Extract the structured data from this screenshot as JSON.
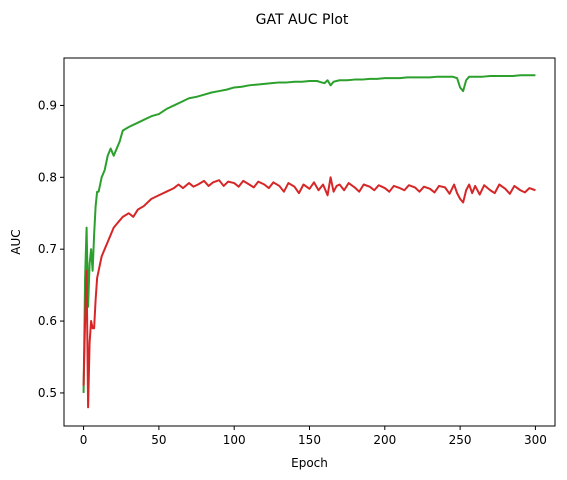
{
  "chart_data": {
    "type": "line",
    "title": "GAT AUC Plot",
    "xlabel": "Epoch",
    "ylabel": "AUC",
    "xlim": [
      -13,
      313
    ],
    "ylim": [
      0.454,
      0.966
    ],
    "xticks": [
      0,
      50,
      100,
      150,
      200,
      250,
      300
    ],
    "yticks": [
      0.5,
      0.6,
      0.7,
      0.8,
      0.9
    ],
    "grid": false,
    "legend": "none",
    "series": [
      {
        "color": "#2ca02c",
        "points": [
          [
            0,
            0.5
          ],
          [
            1,
            0.66
          ],
          [
            2,
            0.73
          ],
          [
            3,
            0.62
          ],
          [
            4,
            0.68
          ],
          [
            5,
            0.7
          ],
          [
            6,
            0.67
          ],
          [
            7,
            0.72
          ],
          [
            8,
            0.76
          ],
          [
            9,
            0.78
          ],
          [
            10,
            0.78
          ],
          [
            12,
            0.8
          ],
          [
            14,
            0.81
          ],
          [
            16,
            0.83
          ],
          [
            18,
            0.84
          ],
          [
            20,
            0.83
          ],
          [
            22,
            0.84
          ],
          [
            24,
            0.85
          ],
          [
            26,
            0.865
          ],
          [
            30,
            0.87
          ],
          [
            35,
            0.875
          ],
          [
            40,
            0.88
          ],
          [
            45,
            0.885
          ],
          [
            50,
            0.888
          ],
          [
            55,
            0.895
          ],
          [
            60,
            0.9
          ],
          [
            65,
            0.905
          ],
          [
            70,
            0.91
          ],
          [
            75,
            0.912
          ],
          [
            80,
            0.915
          ],
          [
            85,
            0.918
          ],
          [
            90,
            0.92
          ],
          [
            95,
            0.922
          ],
          [
            100,
            0.925
          ],
          [
            105,
            0.926
          ],
          [
            110,
            0.928
          ],
          [
            115,
            0.929
          ],
          [
            120,
            0.93
          ],
          [
            125,
            0.931
          ],
          [
            130,
            0.932
          ],
          [
            135,
            0.932
          ],
          [
            140,
            0.933
          ],
          [
            145,
            0.933
          ],
          [
            150,
            0.934
          ],
          [
            155,
            0.934
          ],
          [
            158,
            0.932
          ],
          [
            160,
            0.931
          ],
          [
            162,
            0.935
          ],
          [
            164,
            0.928
          ],
          [
            166,
            0.933
          ],
          [
            170,
            0.935
          ],
          [
            175,
            0.935
          ],
          [
            180,
            0.936
          ],
          [
            185,
            0.936
          ],
          [
            190,
            0.937
          ],
          [
            195,
            0.937
          ],
          [
            200,
            0.938
          ],
          [
            205,
            0.938
          ],
          [
            210,
            0.938
          ],
          [
            215,
            0.939
          ],
          [
            220,
            0.939
          ],
          [
            225,
            0.939
          ],
          [
            230,
            0.939
          ],
          [
            235,
            0.94
          ],
          [
            240,
            0.94
          ],
          [
            245,
            0.94
          ],
          [
            248,
            0.938
          ],
          [
            250,
            0.925
          ],
          [
            252,
            0.92
          ],
          [
            254,
            0.935
          ],
          [
            256,
            0.94
          ],
          [
            260,
            0.94
          ],
          [
            265,
            0.94
          ],
          [
            270,
            0.941
          ],
          [
            275,
            0.941
          ],
          [
            280,
            0.941
          ],
          [
            285,
            0.941
          ],
          [
            290,
            0.942
          ],
          [
            295,
            0.942
          ],
          [
            300,
            0.942
          ]
        ]
      },
      {
        "color": "#d62728",
        "points": [
          [
            0,
            0.51
          ],
          [
            1,
            0.6
          ],
          [
            2,
            0.67
          ],
          [
            3,
            0.48
          ],
          [
            4,
            0.57
          ],
          [
            5,
            0.6
          ],
          [
            6,
            0.59
          ],
          [
            7,
            0.59
          ],
          [
            8,
            0.63
          ],
          [
            9,
            0.66
          ],
          [
            10,
            0.67
          ],
          [
            12,
            0.69
          ],
          [
            14,
            0.7
          ],
          [
            16,
            0.71
          ],
          [
            18,
            0.72
          ],
          [
            20,
            0.73
          ],
          [
            22,
            0.735
          ],
          [
            24,
            0.74
          ],
          [
            26,
            0.745
          ],
          [
            30,
            0.75
          ],
          [
            33,
            0.745
          ],
          [
            36,
            0.755
          ],
          [
            40,
            0.76
          ],
          [
            45,
            0.77
          ],
          [
            50,
            0.775
          ],
          [
            55,
            0.78
          ],
          [
            60,
            0.785
          ],
          [
            63,
            0.79
          ],
          [
            66,
            0.785
          ],
          [
            70,
            0.792
          ],
          [
            73,
            0.787
          ],
          [
            76,
            0.79
          ],
          [
            80,
            0.795
          ],
          [
            83,
            0.788
          ],
          [
            86,
            0.793
          ],
          [
            90,
            0.796
          ],
          [
            93,
            0.788
          ],
          [
            96,
            0.794
          ],
          [
            100,
            0.792
          ],
          [
            103,
            0.787
          ],
          [
            106,
            0.795
          ],
          [
            110,
            0.79
          ],
          [
            113,
            0.786
          ],
          [
            116,
            0.794
          ],
          [
            120,
            0.79
          ],
          [
            123,
            0.785
          ],
          [
            126,
            0.793
          ],
          [
            130,
            0.788
          ],
          [
            133,
            0.78
          ],
          [
            136,
            0.792
          ],
          [
            140,
            0.787
          ],
          [
            143,
            0.778
          ],
          [
            146,
            0.79
          ],
          [
            150,
            0.784
          ],
          [
            153,
            0.793
          ],
          [
            156,
            0.782
          ],
          [
            159,
            0.79
          ],
          [
            162,
            0.775
          ],
          [
            164,
            0.8
          ],
          [
            166,
            0.78
          ],
          [
            168,
            0.788
          ],
          [
            170,
            0.79
          ],
          [
            173,
            0.782
          ],
          [
            176,
            0.792
          ],
          [
            180,
            0.786
          ],
          [
            183,
            0.78
          ],
          [
            186,
            0.79
          ],
          [
            190,
            0.787
          ],
          [
            193,
            0.782
          ],
          [
            196,
            0.789
          ],
          [
            200,
            0.785
          ],
          [
            203,
            0.78
          ],
          [
            206,
            0.788
          ],
          [
            210,
            0.785
          ],
          [
            213,
            0.782
          ],
          [
            216,
            0.789
          ],
          [
            220,
            0.786
          ],
          [
            223,
            0.78
          ],
          [
            226,
            0.787
          ],
          [
            230,
            0.784
          ],
          [
            233,
            0.779
          ],
          [
            236,
            0.788
          ],
          [
            240,
            0.786
          ],
          [
            243,
            0.777
          ],
          [
            246,
            0.79
          ],
          [
            248,
            0.778
          ],
          [
            250,
            0.77
          ],
          [
            252,
            0.765
          ],
          [
            254,
            0.782
          ],
          [
            256,
            0.79
          ],
          [
            258,
            0.778
          ],
          [
            260,
            0.788
          ],
          [
            263,
            0.776
          ],
          [
            266,
            0.789
          ],
          [
            270,
            0.782
          ],
          [
            273,
            0.778
          ],
          [
            276,
            0.79
          ],
          [
            280,
            0.784
          ],
          [
            283,
            0.777
          ],
          [
            286,
            0.788
          ],
          [
            290,
            0.782
          ],
          [
            293,
            0.779
          ],
          [
            296,
            0.785
          ],
          [
            300,
            0.782
          ]
        ]
      }
    ]
  }
}
